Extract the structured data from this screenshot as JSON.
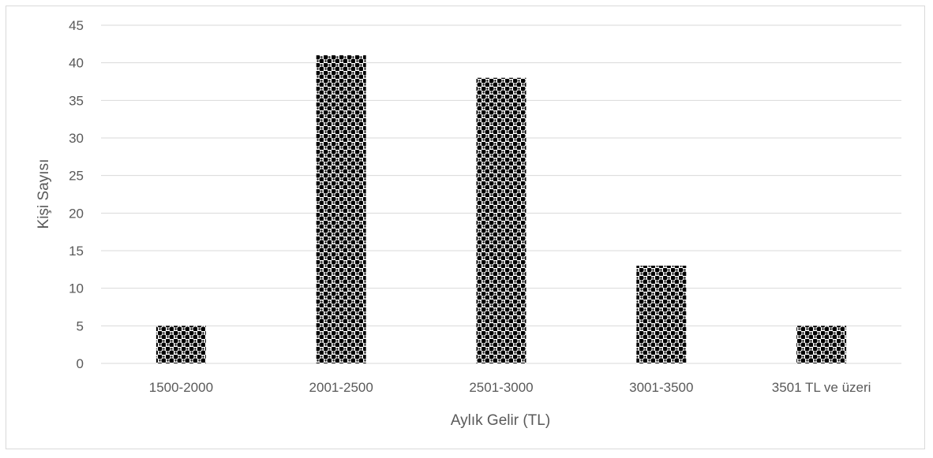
{
  "chart_data": {
    "type": "bar",
    "categories": [
      "1500-2000",
      "2001-2500",
      "2501-3000",
      "3001-3500",
      "3501 TL ve üzeri"
    ],
    "values": [
      5,
      41,
      38,
      13,
      5
    ],
    "title": "",
    "xlabel": "Aylık Gelir (TL)",
    "ylabel": "Kişi Sayısı",
    "ylim": [
      0,
      45
    ],
    "yticks": [
      "0",
      "5",
      "10",
      "15",
      "20",
      "25",
      "30",
      "35",
      "40",
      "45"
    ],
    "grid": true,
    "legend": "none",
    "colors": {
      "bar_fill": "#000000",
      "bar_pattern_bg": "#ffffff",
      "grid": "#d9d9d9",
      "text": "#595959",
      "frame": "#d9d9d9"
    }
  }
}
